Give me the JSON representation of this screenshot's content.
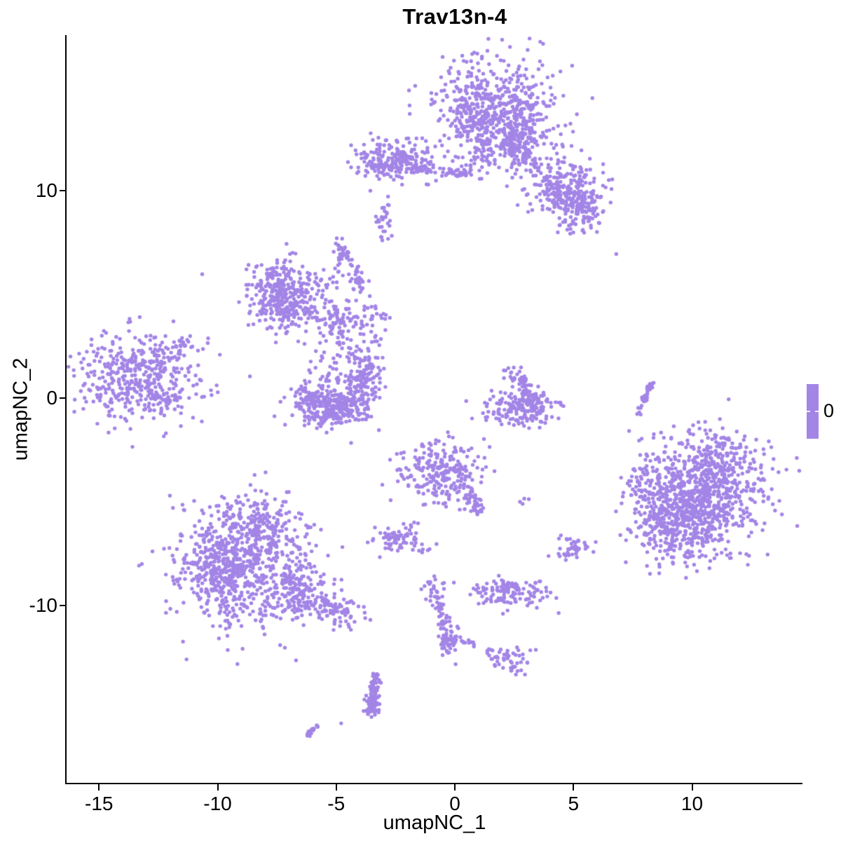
{
  "title": "Trav13n-4",
  "x_axis": {
    "label": "umapNC_1",
    "tick_labels": [
      "-15",
      "-10",
      "-5",
      "0",
      "5",
      "10"
    ],
    "tick_values": [
      -15,
      -10,
      -5,
      0,
      5,
      10
    ]
  },
  "y_axis": {
    "label": "umapNC_2",
    "tick_labels": [
      "-10",
      "0",
      "10"
    ],
    "tick_values": [
      -10,
      0,
      10
    ]
  },
  "legend": {
    "label": "0",
    "bar_color": "#a385e6"
  },
  "colors": {
    "point": "#a385e6",
    "axis": "#000000",
    "text": "#000000",
    "background": "#ffffff"
  },
  "chart_data": {
    "type": "scatter",
    "title": "Trav13n-4",
    "xlabel": "umapNC_1",
    "ylabel": "umapNC_2",
    "xlim": [
      -16.4,
      14.7
    ],
    "ylim": [
      -18.6,
      17.5
    ],
    "x_ticks": [
      -15,
      -10,
      -5,
      0,
      5,
      10
    ],
    "y_ticks": [
      -10,
      0,
      10
    ],
    "grid": false,
    "legend_position": "right",
    "legend_value": "0",
    "point_color": "#a385e6",
    "n_points_approx": 6450,
    "clusters": [
      {
        "t": "g",
        "x": 1.65,
        "y": 13.95,
        "sx": 1.25,
        "sy": 1.35,
        "n": 520
      },
      {
        "t": "g",
        "x": 2.7,
        "y": 12.9,
        "sx": 0.8,
        "sy": 0.8,
        "n": 130
      },
      {
        "t": "g",
        "x": 0.75,
        "y": 13.3,
        "sx": 0.5,
        "sy": 0.9,
        "n": 60
      },
      {
        "t": "l",
        "x1": 2.35,
        "y1": 12.9,
        "x2": 2.6,
        "y2": 11.5,
        "j": 0.22,
        "n": 45
      },
      {
        "t": "g",
        "x": 3.4,
        "y": 10.9,
        "sx": 0.8,
        "sy": 0.7,
        "n": 70
      },
      {
        "t": "g",
        "x": 5.0,
        "y": 10.1,
        "sx": 0.65,
        "sy": 0.7,
        "n": 130
      },
      {
        "t": "g",
        "x": 5.3,
        "y": 9.25,
        "sx": 0.55,
        "sy": 0.55,
        "n": 110
      },
      {
        "t": "g",
        "x": 4.2,
        "y": 9.9,
        "sx": 0.45,
        "sy": 0.45,
        "n": 40
      },
      {
        "t": "g",
        "x": 5.1,
        "y": 8.35,
        "sx": 0.35,
        "sy": 0.35,
        "n": 12
      },
      {
        "t": "g",
        "x": 0.85,
        "y": 11.7,
        "sx": 0.55,
        "sy": 0.45,
        "n": 25
      },
      {
        "t": "g",
        "x": -2.5,
        "y": 11.5,
        "sx": 0.8,
        "sy": 0.5,
        "n": 200
      },
      {
        "t": "l",
        "x1": -1.8,
        "y1": 11.1,
        "x2": 0.6,
        "y2": 10.8,
        "j": 0.12,
        "n": 60
      },
      {
        "t": "g",
        "x": -3.5,
        "y": 11.1,
        "sx": 0.25,
        "sy": 0.3,
        "n": 12
      },
      {
        "t": "g",
        "x": -3.0,
        "y": 8.5,
        "sx": 0.16,
        "sy": 0.42,
        "n": 28
      },
      {
        "t": "g",
        "x": -7.55,
        "y": 5.4,
        "sx": 0.55,
        "sy": 0.75,
        "n": 170
      },
      {
        "t": "g",
        "x": -7.15,
        "y": 4.35,
        "sx": 0.7,
        "sy": 0.6,
        "n": 150
      },
      {
        "t": "g",
        "x": -6.25,
        "y": 5.35,
        "sx": 0.8,
        "sy": 0.6,
        "n": 80
      },
      {
        "t": "l",
        "x1": -4.7,
        "y1": 7.3,
        "x2": -3.7,
        "y2": 4.5,
        "j": 0.18,
        "n": 40
      },
      {
        "t": "g",
        "x": -4.75,
        "y": 7.0,
        "sx": 0.25,
        "sy": 0.5,
        "n": 25
      },
      {
        "t": "g",
        "x": -4.9,
        "y": 3.6,
        "sx": 0.5,
        "sy": 0.45,
        "n": 90
      },
      {
        "t": "g",
        "x": -3.3,
        "y": 3.75,
        "sx": 0.35,
        "sy": 0.25,
        "n": 14
      },
      {
        "t": "l",
        "x1": -4.5,
        "y1": 3.1,
        "x2": -4.35,
        "y2": 1.6,
        "j": 0.12,
        "n": 12
      },
      {
        "t": "l",
        "x1": -3.6,
        "y1": 4.3,
        "x2": -3.2,
        "y2": 2.6,
        "j": 0.15,
        "n": 14
      },
      {
        "t": "g",
        "x": -13.45,
        "y": 1.0,
        "sx": 1.3,
        "sy": 1.1,
        "n": 420
      },
      {
        "t": "l",
        "x1": -12.2,
        "y1": 1.85,
        "x2": -11.3,
        "y2": 2.75,
        "j": 0.18,
        "n": 30
      },
      {
        "t": "g",
        "x": -12.5,
        "y": -0.15,
        "sx": 0.5,
        "sy": 0.3,
        "n": 30
      },
      {
        "t": "g",
        "x": -5.95,
        "y": 0.05,
        "sx": 0.5,
        "sy": 0.55,
        "n": 110
      },
      {
        "t": "g",
        "x": -5.15,
        "y": -0.5,
        "sx": 0.7,
        "sy": 0.42,
        "n": 190
      },
      {
        "t": "g",
        "x": -4.15,
        "y": 0.1,
        "sx": 0.45,
        "sy": 0.7,
        "n": 130
      },
      {
        "t": "g",
        "x": -3.75,
        "y": 1.3,
        "sx": 0.32,
        "sy": 0.55,
        "n": 60
      },
      {
        "t": "l",
        "x1": -4.8,
        "y1": 2.3,
        "x2": -5.35,
        "y2": 0.85,
        "j": 0.1,
        "n": 11
      },
      {
        "t": "g",
        "x": -5.7,
        "y": 2.05,
        "sx": 0.28,
        "sy": 0.28,
        "n": 7
      },
      {
        "t": "g",
        "x": -6.15,
        "y": 1.3,
        "sx": 0.15,
        "sy": 0.15,
        "n": 3
      },
      {
        "t": "g",
        "x": -3.05,
        "y": 1.95,
        "sx": 0.05,
        "sy": 0.05,
        "n": 1
      },
      {
        "t": "g",
        "x": 2.9,
        "y": -0.55,
        "sx": 0.75,
        "sy": 0.38,
        "n": 160
      },
      {
        "t": "l",
        "x1": 2.6,
        "y1": 1.2,
        "x2": 3.35,
        "y2": -0.15,
        "j": 0.2,
        "n": 55
      },
      {
        "t": "g",
        "x": 2.3,
        "y": 1.35,
        "sx": 0.2,
        "sy": 0.2,
        "n": 8
      },
      {
        "t": "g",
        "x": 1.95,
        "y": -0.4,
        "sx": 0.3,
        "sy": 0.18,
        "n": 10
      },
      {
        "t": "l",
        "x1": 8.3,
        "y1": 0.85,
        "x2": 7.8,
        "y2": -0.45,
        "j": 0.07,
        "n": 32
      },
      {
        "t": "g",
        "x": 7.75,
        "y": -0.7,
        "sx": 0.06,
        "sy": 0.1,
        "n": 3
      },
      {
        "t": "g",
        "x": -0.55,
        "y": -3.6,
        "sx": 0.9,
        "sy": 0.8,
        "n": 240
      },
      {
        "t": "l",
        "x1": 0.5,
        "y1": -4.4,
        "x2": 1.2,
        "y2": -5.6,
        "j": 0.18,
        "n": 40
      },
      {
        "t": "g",
        "x": -1.25,
        "y": -5.1,
        "sx": 0.08,
        "sy": 0.08,
        "n": 2
      },
      {
        "t": "g",
        "x": -2.4,
        "y": -6.85,
        "sx": 0.5,
        "sy": 0.35,
        "n": 65
      },
      {
        "t": "g",
        "x": -1.25,
        "y": -7.2,
        "sx": 0.22,
        "sy": 0.14,
        "n": 6
      },
      {
        "t": "g",
        "x": -1.9,
        "y": -6.2,
        "sx": 0.12,
        "sy": 0.1,
        "n": 3
      },
      {
        "t": "g",
        "x": 2.75,
        "y": -5.0,
        "sx": 0.2,
        "sy": 0.12,
        "n": 4
      },
      {
        "t": "g",
        "x": -8.8,
        "y": -8.2,
        "sx": 1.45,
        "sy": 1.45,
        "n": 640
      },
      {
        "t": "g",
        "x": -8.6,
        "y": -5.9,
        "sx": 1.0,
        "sy": 0.7,
        "n": 150
      },
      {
        "t": "g",
        "x": -10.2,
        "y": -8.4,
        "sx": 0.75,
        "sy": 0.95,
        "n": 140
      },
      {
        "t": "l",
        "x1": -7.1,
        "y1": -9.7,
        "x2": -4.2,
        "y2": -10.5,
        "j": 0.32,
        "n": 140
      },
      {
        "t": "g",
        "x": -6.4,
        "y": -8.9,
        "sx": 0.65,
        "sy": 0.55,
        "n": 60
      },
      {
        "t": "g",
        "x": 10.3,
        "y": -4.8,
        "sx": 1.35,
        "sy": 1.4,
        "n": 780
      },
      {
        "t": "g",
        "x": 9.4,
        "y": -6.1,
        "sx": 0.9,
        "sy": 0.65,
        "n": 220
      },
      {
        "t": "g",
        "x": 10.9,
        "y": -2.9,
        "sx": 1.1,
        "sy": 0.75,
        "n": 160
      },
      {
        "t": "g",
        "x": 7.9,
        "y": -3.9,
        "sx": 0.35,
        "sy": 0.8,
        "n": 30
      },
      {
        "t": "g",
        "x": 5.0,
        "y": -7.2,
        "sx": 0.38,
        "sy": 0.3,
        "n": 42
      },
      {
        "t": "g",
        "x": 2.35,
        "y": -9.4,
        "sx": 0.8,
        "sy": 0.33,
        "n": 120
      },
      {
        "t": "g",
        "x": 2.1,
        "y": -8.95,
        "sx": 0.15,
        "sy": 0.12,
        "n": 6
      },
      {
        "t": "g",
        "x": -0.9,
        "y": -9.2,
        "sx": 0.22,
        "sy": 0.22,
        "n": 22
      },
      {
        "t": "l",
        "x1": -0.8,
        "y1": -9.6,
        "x2": -0.22,
        "y2": -11.7,
        "j": 0.1,
        "n": 35
      },
      {
        "t": "g",
        "x": -0.25,
        "y": -11.6,
        "sx": 0.26,
        "sy": 0.5,
        "n": 55
      },
      {
        "t": "g",
        "x": -0.75,
        "y": -11.55,
        "sx": 0.05,
        "sy": 0.05,
        "n": 1
      },
      {
        "t": "l",
        "x1": 0.2,
        "y1": -11.7,
        "x2": 0.8,
        "y2": -11.85,
        "j": 0.06,
        "n": 9
      },
      {
        "t": "g",
        "x": 2.2,
        "y": -12.6,
        "sx": 0.42,
        "sy": 0.28,
        "n": 45
      },
      {
        "t": "g",
        "x": 2.5,
        "y": -13.1,
        "sx": 0.12,
        "sy": 0.12,
        "n": 5
      },
      {
        "t": "g",
        "x": 1.5,
        "y": -12.2,
        "sx": 0.14,
        "sy": 0.1,
        "n": 4
      },
      {
        "t": "l",
        "x1": -3.3,
        "y1": -13.4,
        "x2": -3.62,
        "y2": -15.2,
        "j": 0.14,
        "n": 85
      },
      {
        "t": "g",
        "x": -3.45,
        "y": -14.9,
        "sx": 0.12,
        "sy": 0.2,
        "n": 25
      },
      {
        "t": "g",
        "x": -4.8,
        "y": -15.6,
        "sx": 0.05,
        "sy": 0.05,
        "n": 1
      },
      {
        "t": "l",
        "x1": -6.25,
        "y1": -16.2,
        "x2": -5.75,
        "y2": -15.85,
        "j": 0.06,
        "n": 16
      },
      {
        "t": "g",
        "x": 6.8,
        "y": 6.95,
        "sx": 0.05,
        "sy": 0.05,
        "n": 1
      },
      {
        "t": "g",
        "x": -10.6,
        "y": 5.95,
        "sx": 0.05,
        "sy": 0.05,
        "n": 1
      }
    ]
  }
}
